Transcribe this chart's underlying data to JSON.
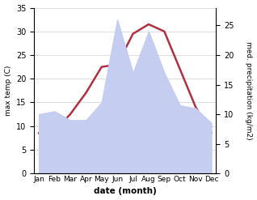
{
  "months": [
    "Jan",
    "Feb",
    "Mar",
    "Apr",
    "May",
    "Jun",
    "Jul",
    "Aug",
    "Sep",
    "Oct",
    "Nov",
    "Dec"
  ],
  "temp": [
    8.5,
    9.0,
    12.5,
    17.0,
    22.5,
    23.0,
    29.5,
    31.5,
    30.0,
    22.0,
    14.0,
    8.5
  ],
  "precip": [
    10.0,
    10.5,
    9.0,
    9.0,
    12.0,
    26.0,
    17.0,
    24.0,
    17.0,
    11.5,
    11.0,
    8.5
  ],
  "temp_color": "#b03040",
  "precip_fill_color": "#c5cdf0",
  "temp_ylim": [
    0,
    35
  ],
  "precip_ylim": [
    0,
    28
  ],
  "temp_yticks": [
    0,
    5,
    10,
    15,
    20,
    25,
    30,
    35
  ],
  "precip_yticks": [
    0,
    5,
    10,
    15,
    20,
    25
  ],
  "xlabel": "date (month)",
  "ylabel_left": "max temp (C)",
  "ylabel_right": "med. precipitation (kg/m2)",
  "bg_color": "#ffffff",
  "grid_color": "#d0d0d0"
}
